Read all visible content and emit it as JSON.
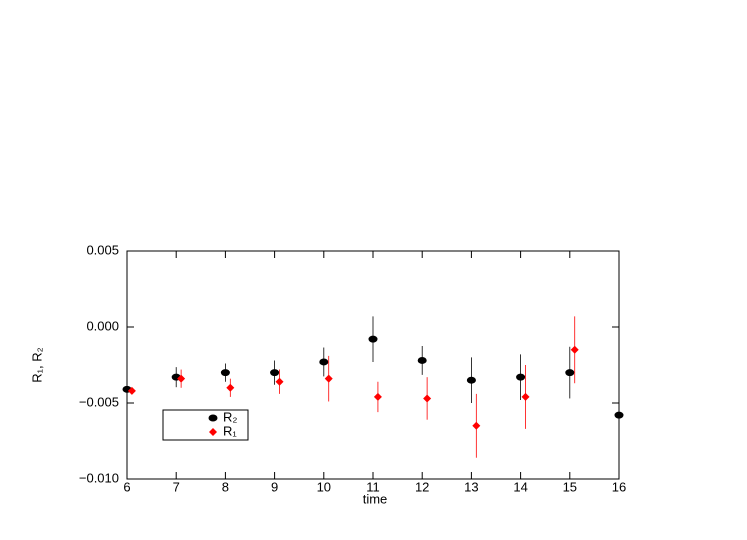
{
  "chart_data": {
    "type": "scatter",
    "x_label": "time",
    "y_label": "R₁, R₂",
    "xlim": [
      6,
      16
    ],
    "ylim": [
      -0.01,
      0.005
    ],
    "xticks": [
      6,
      7,
      8,
      9,
      10,
      11,
      12,
      13,
      14,
      15,
      16
    ],
    "yticks": [
      {
        "value": -0.01,
        "label": "−0.010"
      },
      {
        "value": -0.005,
        "label": "−0.005"
      },
      {
        "value": 0,
        "label": "0.000"
      },
      {
        "value": 0.005,
        "label": "0.005"
      }
    ],
    "legend": "lower left",
    "series": [
      {
        "name": "R₂",
        "color": "#000000",
        "marker": "circle",
        "x": [
          6,
          7,
          8,
          9,
          10,
          11,
          12,
          13,
          14,
          15,
          16
        ],
        "values": [
          -0.0041,
          -0.0033,
          -0.003,
          -0.003,
          -0.0023,
          -0.0008,
          -0.0022,
          -0.0035,
          -0.0033,
          -0.003,
          -0.0058
        ],
        "errors": [
          0.0001,
          0.00066,
          0.0006,
          0.0008,
          0.00095,
          0.0015,
          0.00095,
          0.0015,
          0.0015,
          0.0017,
          0.0001
        ]
      },
      {
        "name": "R₁",
        "color": "#ff0000",
        "marker": "diamond",
        "x": [
          6.1,
          7.1,
          8.1,
          9.1,
          10.1,
          11.1,
          12.1,
          13.1,
          14.1,
          15.1
        ],
        "values": [
          -0.0042,
          -0.0034,
          -0.004,
          -0.0036,
          -0.0034,
          -0.0046,
          -0.0047,
          -0.0065,
          -0.0046,
          -0.0015
        ],
        "errors": [
          0.0002,
          0.0006,
          0.0006,
          0.0008,
          0.0015,
          0.001,
          0.0014,
          0.0021,
          0.0021,
          0.0022
        ]
      }
    ]
  }
}
